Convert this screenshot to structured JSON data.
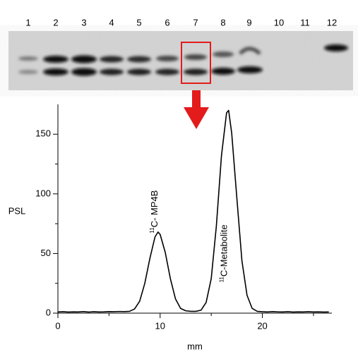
{
  "lanes": [
    "1",
    "2",
    "3",
    "4",
    "5",
    "6",
    "7",
    "8",
    "9",
    "10",
    "11",
    "12"
  ],
  "chart_data": {
    "type": "line",
    "xlabel": "mm",
    "ylabel": "PSL",
    "xlim": [
      0,
      26.8
    ],
    "ylim": [
      0,
      175
    ],
    "xticks": [
      0,
      10,
      20
    ],
    "xminorticks": [
      5,
      15,
      25
    ],
    "yticks": [
      0,
      50,
      100,
      150
    ],
    "yminorticks": [
      25,
      75,
      125
    ],
    "color": "#000000",
    "annotations": [
      {
        "sup": "11",
        "text": "C- MP4B",
        "x": 9.8,
        "y": 85
      },
      {
        "sup": "11",
        "text": "C-Metabolite",
        "x": 16.6,
        "y": 50
      }
    ],
    "x": [
      0,
      0.5,
      1,
      1.5,
      2,
      2.5,
      3,
      3.5,
      4,
      4.5,
      5,
      5.5,
      6,
      6.5,
      7,
      7.5,
      8,
      8.5,
      9,
      9.5,
      9.8,
      10,
      10.5,
      11,
      11.5,
      12,
      12.5,
      13,
      13.5,
      14,
      14.5,
      15,
      15.5,
      16,
      16.5,
      16.7,
      17,
      17.5,
      18,
      18.5,
      19,
      19.5,
      20,
      20.5,
      21,
      21.5,
      22,
      22.5,
      23,
      23.5,
      24,
      24.5,
      25,
      25.5,
      26,
      26.5
    ],
    "values": [
      1,
      1.2,
      0.9,
      1.1,
      1,
      1.3,
      0.9,
      1.2,
      1,
      1.1,
      1.3,
      1.2,
      1.4,
      1.3,
      1.5,
      3.5,
      10,
      25,
      46,
      64,
      68,
      66,
      51,
      29,
      12,
      4,
      2,
      1.5,
      1.5,
      2.5,
      9,
      29,
      73,
      132,
      168,
      170,
      151,
      97,
      44,
      15,
      4,
      1.5,
      1.2,
      1,
      1.3,
      1.1,
      1,
      1.2,
      0.9,
      1.1,
      1,
      1.2,
      1,
      1.1,
      0.9,
      1
    ]
  }
}
